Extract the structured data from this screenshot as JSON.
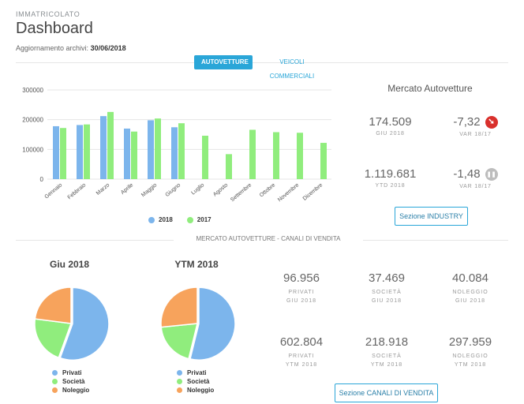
{
  "header": {
    "eyebrow": "IMMATRICOLATO",
    "title": "Dashboard",
    "updated_label": "Aggiornamento archivi:",
    "updated_date": "30/06/2018"
  },
  "tabs": [
    {
      "label": "AUTOVETTURE",
      "active": true
    },
    {
      "label": "VEICOLI COMMERCIALI",
      "active": false
    }
  ],
  "chart_data": [
    {
      "type": "bar",
      "categories": [
        "Gennaio",
        "Febbraio",
        "Marzo",
        "Aprile",
        "Maggio",
        "Giugno",
        "Luglio",
        "Agosto",
        "Settembre",
        "Ottobre",
        "Novembre",
        "Dicembre"
      ],
      "series": [
        {
          "name": "2018",
          "color": "#7cb5ec",
          "values": [
            178000,
            182000,
            212000,
            170000,
            198000,
            174500,
            null,
            null,
            null,
            null,
            null,
            null
          ]
        },
        {
          "name": "2017",
          "color": "#90ed7d",
          "values": [
            172000,
            184000,
            226000,
            160000,
            204000,
            188000,
            146000,
            84000,
            166000,
            158000,
            156000,
            122000
          ]
        }
      ],
      "y_ticks": [
        "0",
        "100000",
        "200000",
        "300000"
      ],
      "ylim": [
        0,
        300000
      ],
      "grid": true,
      "legend": "bottom"
    },
    {
      "type": "pie",
      "title": "Giu 2018",
      "categories": [
        "Privati",
        "Società",
        "Noleggio"
      ],
      "values": [
        96956,
        37469,
        40084
      ],
      "colors": [
        "#7cb5ec",
        "#90ed7d",
        "#f7a35c"
      ]
    },
    {
      "type": "pie",
      "title": "YTM 2018",
      "categories": [
        "Privati",
        "Società",
        "Noleggio"
      ],
      "values": [
        602804,
        218918,
        297959
      ],
      "colors": [
        "#7cb5ec",
        "#90ed7d",
        "#f7a35c"
      ]
    }
  ],
  "market": {
    "title": "Mercato Autovetture",
    "kpis": [
      {
        "value": "174.509",
        "label": "GIU 2018"
      },
      {
        "value": "-7,32",
        "label": "VAR 18/17",
        "icon": "arrow-down-right-icon",
        "icon_color": "#d9302c",
        "icon_glyph": "➘"
      },
      {
        "value": "1.119.681",
        "label": "YTD 2018"
      },
      {
        "value": "-1,48",
        "label": "VAR 18/17",
        "icon": "pause-icon",
        "icon_color": "#bdbdbd",
        "icon_glyph": "❚❚"
      }
    ],
    "button": "Sezione INDUSTRY"
  },
  "channels": {
    "section_label": "MERCATO AUTOVETTURE - CANALI DI VENDITA",
    "stats": [
      {
        "value": "96.956",
        "label": "PRIVATI",
        "period": "GIU 2018"
      },
      {
        "value": "37.469",
        "label": "SOCIETÀ",
        "period": "GIU 2018"
      },
      {
        "value": "40.084",
        "label": "NOLEGGIO",
        "period": "GIU 2018"
      },
      {
        "value": "602.804",
        "label": "PRIVATI",
        "period": "YTM 2018"
      },
      {
        "value": "218.918",
        "label": "SOCIETÀ",
        "period": "YTM 2018"
      },
      {
        "value": "297.959",
        "label": "NOLEGGIO",
        "period": "YTM 2018"
      }
    ],
    "button": "Sezione CANALI DI VENDITA"
  }
}
